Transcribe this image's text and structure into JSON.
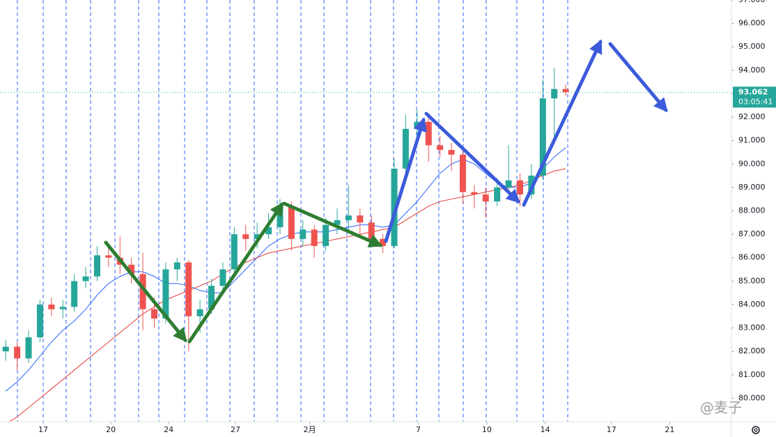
{
  "chart_data": {
    "type": "candlestick",
    "x": [
      0,
      1,
      2,
      3,
      4,
      5,
      6,
      7,
      8,
      9,
      10,
      11,
      12,
      13,
      14,
      15,
      16,
      17,
      18,
      19,
      20,
      21,
      22,
      23,
      24,
      25,
      26,
      27,
      28,
      29,
      30,
      31,
      32,
      33,
      34,
      35,
      36,
      37,
      38,
      39,
      40,
      41,
      42,
      43,
      44,
      45,
      46,
      47,
      48,
      49
    ],
    "open": [
      82.0,
      82.2,
      81.7,
      82.6,
      84.0,
      83.8,
      83.9,
      85.0,
      85.2,
      86.1,
      86.0,
      85.7,
      85.3,
      83.8,
      83.4,
      85.5,
      85.8,
      83.5,
      83.8,
      84.8,
      85.5,
      87.0,
      86.8,
      87.0,
      87.3,
      88.2,
      86.8,
      87.2,
      86.5,
      87.4,
      87.6,
      87.8,
      87.5,
      86.8,
      86.5,
      89.8,
      91.5,
      91.8,
      90.8,
      90.6,
      90.4,
      88.8,
      88.7,
      88.4,
      89.0,
      89.3,
      88.7,
      89.5,
      92.8,
      93.2
    ],
    "high": [
      82.5,
      82.4,
      82.9,
      84.2,
      84.3,
      84.2,
      85.3,
      85.6,
      86.5,
      86.4,
      86.9,
      86.0,
      86.2,
      84.3,
      85.8,
      86.0,
      85.9,
      84.2,
      85.1,
      85.8,
      87.3,
      87.4,
      87.5,
      87.9,
      88.5,
      88.4,
      87.6,
      87.4,
      87.7,
      88.1,
      89.1,
      88.1,
      87.8,
      87.0,
      90.2,
      92.1,
      92.3,
      92.0,
      91.2,
      90.9,
      90.6,
      89.1,
      89.0,
      89.4,
      90.8,
      89.6,
      90.0,
      93.6,
      94.1,
      93.4
    ],
    "low": [
      81.6,
      81.2,
      81.5,
      82.4,
      83.5,
      83.4,
      83.7,
      84.7,
      85.0,
      85.6,
      85.3,
      84.9,
      82.9,
      83.0,
      83.2,
      85.0,
      82.0,
      82.8,
      83.6,
      84.5,
      85.3,
      86.3,
      86.4,
      86.8,
      87.0,
      86.3,
      86.5,
      86.0,
      86.3,
      87.0,
      87.2,
      87.0,
      86.5,
      86.2,
      86.4,
      89.6,
      91.0,
      90.1,
      90.3,
      89.7,
      88.3,
      88.1,
      87.7,
      88.2,
      88.8,
      88.2,
      88.5,
      89.3,
      91.0,
      92.9
    ],
    "close": [
      82.2,
      81.7,
      82.6,
      84.0,
      83.8,
      83.9,
      85.0,
      85.2,
      86.1,
      86.0,
      85.7,
      85.3,
      83.8,
      83.4,
      85.5,
      85.8,
      83.5,
      83.8,
      84.8,
      85.5,
      87.0,
      86.8,
      87.0,
      87.3,
      88.2,
      86.8,
      87.2,
      86.5,
      87.4,
      87.6,
      87.8,
      87.5,
      86.8,
      86.5,
      89.8,
      91.5,
      91.8,
      90.8,
      90.6,
      90.4,
      88.8,
      88.7,
      88.4,
      89.0,
      89.3,
      88.7,
      89.5,
      92.8,
      93.2,
      93.062
    ],
    "up_color": "#26a69a",
    "down_color": "#ef5350",
    "series": [
      {
        "color": "#2962ff",
        "values": [
          80.3,
          80.7,
          81.2,
          81.8,
          82.4,
          82.9,
          83.3,
          83.8,
          84.4,
          84.9,
          85.2,
          85.4,
          85.4,
          85.2,
          84.9,
          84.9,
          84.8,
          84.6,
          84.5,
          84.5,
          85.0,
          85.5,
          86.0,
          86.5,
          86.8,
          87.0,
          87.1,
          87.1,
          87.1,
          87.2,
          87.3,
          87.4,
          87.4,
          87.3,
          87.4,
          87.9,
          88.4,
          89.0,
          89.6,
          90.0,
          90.2,
          90.0,
          89.6,
          89.2,
          89.0,
          89.0,
          89.2,
          89.8,
          90.3,
          90.7
        ]
      },
      {
        "color": "#e53935",
        "values": [
          78.9,
          79.2,
          79.6,
          80.0,
          80.4,
          80.8,
          81.2,
          81.6,
          82.0,
          82.4,
          82.8,
          83.2,
          83.6,
          83.9,
          84.2,
          84.4,
          84.6,
          84.8,
          85.0,
          85.3,
          85.6,
          85.8,
          86.0,
          86.2,
          86.3,
          86.4,
          86.5,
          86.6,
          86.7,
          86.8,
          86.9,
          87.0,
          87.1,
          87.2,
          87.3,
          87.6,
          87.9,
          88.2,
          88.4,
          88.5,
          88.6,
          88.7,
          88.8,
          88.9,
          89.0,
          89.1,
          89.3,
          89.5,
          89.7,
          89.8
        ]
      }
    ],
    "xlim": [
      -0.5,
      63.5
    ],
    "xticks": [
      {
        "value": 3.28,
        "label": "17"
      },
      {
        "value": 9.2,
        "label": "20"
      },
      {
        "value": 14.26,
        "label": "24"
      },
      {
        "value": 20.1,
        "label": "27"
      },
      {
        "value": 26.6,
        "label": "2月"
      },
      {
        "value": 36.1,
        "label": "7"
      },
      {
        "value": 42.1,
        "label": "10"
      },
      {
        "value": 47.2,
        "label": "14"
      },
      {
        "value": 53.0,
        "label": "17"
      },
      {
        "value": 58.1,
        "label": "21"
      }
    ],
    "ylim": [
      79,
      97
    ],
    "yticks": [
      {
        "value": 80,
        "label": "80.000"
      },
      {
        "value": 81,
        "label": "81.000"
      },
      {
        "value": 82,
        "label": "82.000"
      },
      {
        "value": 83,
        "label": "83.000"
      },
      {
        "value": 84,
        "label": "84.000"
      },
      {
        "value": 85,
        "label": "85.000"
      },
      {
        "value": 86,
        "label": "86.000"
      },
      {
        "value": 87,
        "label": "87.000"
      },
      {
        "value": 88,
        "label": "88.000"
      },
      {
        "value": 89,
        "label": "89.000"
      },
      {
        "value": 90,
        "label": "90.000"
      },
      {
        "value": 91,
        "label": "91.000"
      },
      {
        "value": 92,
        "label": "92.000"
      },
      {
        "value": 93,
        "label": "93.000"
      },
      {
        "value": 94,
        "label": "94.000"
      },
      {
        "value": 95,
        "label": "95.000"
      },
      {
        "value": 96,
        "label": "96.000"
      },
      {
        "value": 97,
        "label": "97.000"
      }
    ],
    "last_price": 93.062,
    "last_price_color": "#26a69a",
    "countdown": "03:05:41"
  },
  "watermark": "@麦子"
}
